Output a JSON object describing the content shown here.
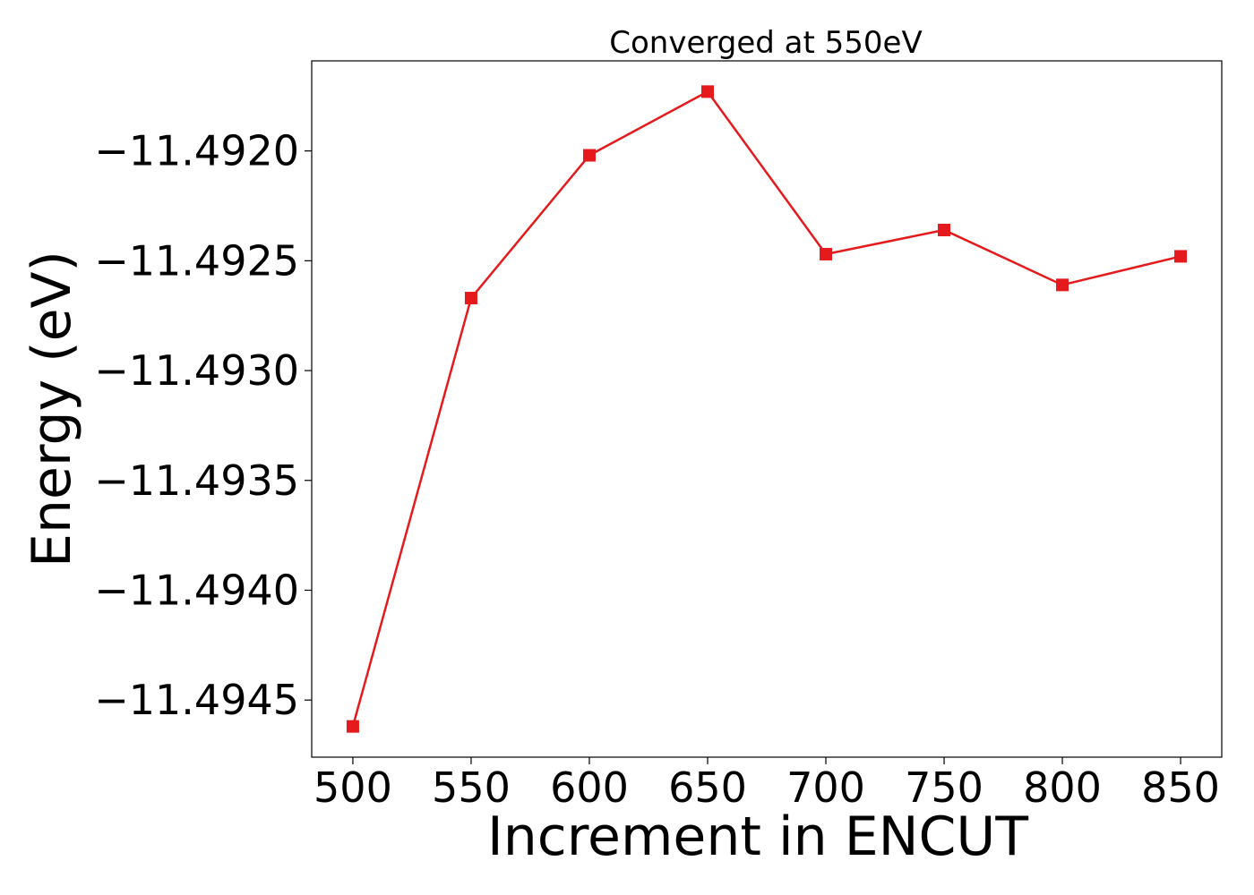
{
  "chart_data": {
    "type": "line",
    "title": "Converged at 550eV",
    "xlabel": "Increment in ENCUT",
    "ylabel": "Energy (eV)",
    "x": [
      500,
      550,
      600,
      650,
      700,
      750,
      800,
      850
    ],
    "series": [
      {
        "values": [
          -11.49462,
          -11.49267,
          -11.49202,
          -11.49173,
          -11.49247,
          -11.49236,
          -11.49261,
          -11.49248
        ],
        "color": "#e41a1c",
        "marker": "square"
      }
    ],
    "xticks": [
      500,
      550,
      600,
      650,
      700,
      750,
      800,
      850
    ],
    "xtick_labels": [
      "500",
      "550",
      "600",
      "650",
      "700",
      "750",
      "800",
      "850"
    ],
    "yticks": [
      -11.4945,
      -11.494,
      -11.4935,
      -11.493,
      -11.4925,
      -11.492
    ],
    "ytick_labels": [
      "−11.4945",
      "−11.4940",
      "−11.4935",
      "−11.4930",
      "−11.4925",
      "−11.4920"
    ],
    "xlim": [
      482.6,
      867.4
    ],
    "ylim": [
      -11.49476,
      -11.49159
    ],
    "grid": false,
    "legend": "none"
  }
}
